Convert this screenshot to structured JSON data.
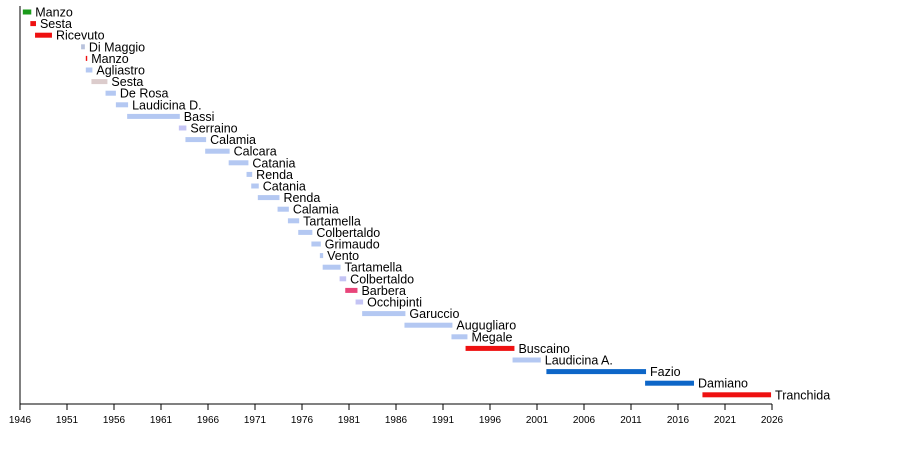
{
  "chart_data": {
    "type": "timeline",
    "title": "",
    "xlabel": "",
    "ylabel": "",
    "xlim": [
      1946,
      2026
    ],
    "grid": false,
    "ticks": [
      1946,
      1951,
      1956,
      1961,
      1966,
      1971,
      1976,
      1981,
      1986,
      1991,
      1996,
      2001,
      2006,
      2011,
      2016,
      2021,
      2026
    ],
    "colors": {
      "green": "#1a9a1a",
      "red": "#ee1111",
      "lightblue": "#b4c8f2",
      "grayblue": "#b8c2dc",
      "lavender": "#c4c4f4",
      "rosegray": "#dccccc",
      "crimson": "#e8457a",
      "blue": "#0d66c8"
    },
    "bars": [
      {
        "label": "Manzo",
        "start": 1946.3,
        "end": 1947.2,
        "color": "green"
      },
      {
        "label": "Sesta",
        "start": 1947.1,
        "end": 1947.7,
        "color": "red"
      },
      {
        "label": "Ricevuto",
        "start": 1947.6,
        "end": 1949.4,
        "color": "red"
      },
      {
        "label": "Di Maggio",
        "start": 1952.5,
        "end": 1952.9,
        "color": "grayblue"
      },
      {
        "label": "Manzo",
        "start": 1953.0,
        "end": 1953.15,
        "color": "red"
      },
      {
        "label": "Agliastro",
        "start": 1953.0,
        "end": 1953.7,
        "color": "lightblue"
      },
      {
        "label": "Sesta",
        "start": 1953.6,
        "end": 1955.3,
        "color": "rosegray"
      },
      {
        "label": "De Rosa",
        "start": 1955.1,
        "end": 1956.2,
        "color": "lightblue"
      },
      {
        "label": "Laudicina D.",
        "start": 1956.2,
        "end": 1957.5,
        "color": "lightblue"
      },
      {
        "label": "Bassi",
        "start": 1957.4,
        "end": 1963.0,
        "color": "lightblue"
      },
      {
        "label": "Serraino",
        "start": 1962.9,
        "end": 1963.7,
        "color": "lavender"
      },
      {
        "label": "Calamia",
        "start": 1963.6,
        "end": 1965.8,
        "color": "lightblue"
      },
      {
        "label": "Calcara",
        "start": 1965.7,
        "end": 1968.3,
        "color": "lightblue"
      },
      {
        "label": "Catania",
        "start": 1968.2,
        "end": 1970.3,
        "color": "lightblue"
      },
      {
        "label": "Renda",
        "start": 1970.1,
        "end": 1970.7,
        "color": "lightblue"
      },
      {
        "label": "Catania",
        "start": 1970.6,
        "end": 1971.4,
        "color": "lightblue"
      },
      {
        "label": "Renda",
        "start": 1971.3,
        "end": 1973.6,
        "color": "lightblue"
      },
      {
        "label": "Calamia",
        "start": 1973.4,
        "end": 1974.6,
        "color": "lightblue"
      },
      {
        "label": "Tartamella",
        "start": 1974.5,
        "end": 1975.7,
        "color": "lightblue"
      },
      {
        "label": "Colbertaldo",
        "start": 1975.6,
        "end": 1977.1,
        "color": "lightblue"
      },
      {
        "label": "Grimaudo",
        "start": 1977.0,
        "end": 1978.0,
        "color": "lightblue"
      },
      {
        "label": "Vento",
        "start": 1977.9,
        "end": 1978.25,
        "color": "lightblue"
      },
      {
        "label": "Tartamella",
        "start": 1978.2,
        "end": 1980.1,
        "color": "lightblue"
      },
      {
        "label": "Colbertaldo",
        "start": 1980.0,
        "end": 1980.7,
        "color": "lavender"
      },
      {
        "label": "Barbera",
        "start": 1980.6,
        "end": 1981.9,
        "color": "crimson"
      },
      {
        "label": "Occhipinti",
        "start": 1981.7,
        "end": 1982.5,
        "color": "lavender"
      },
      {
        "label": "Garuccio",
        "start": 1982.4,
        "end": 1987.0,
        "color": "lightblue"
      },
      {
        "label": "Augugliaro",
        "start": 1986.9,
        "end": 1992.0,
        "color": "lightblue"
      },
      {
        "label": "Megale",
        "start": 1991.9,
        "end": 1993.6,
        "color": "lightblue"
      },
      {
        "label": "Buscaino",
        "start": 1993.4,
        "end": 1998.6,
        "color": "red"
      },
      {
        "label": "Laudicina A.",
        "start": 1998.4,
        "end": 2001.4,
        "color": "lightblue"
      },
      {
        "label": "Fazio",
        "start": 2002.0,
        "end": 2012.6,
        "color": "blue"
      },
      {
        "label": "Damiano",
        "start": 2012.5,
        "end": 2017.7,
        "color": "blue"
      },
      {
        "label": "Tranchida",
        "start": 2018.6,
        "end": 2025.9,
        "color": "red"
      }
    ]
  }
}
